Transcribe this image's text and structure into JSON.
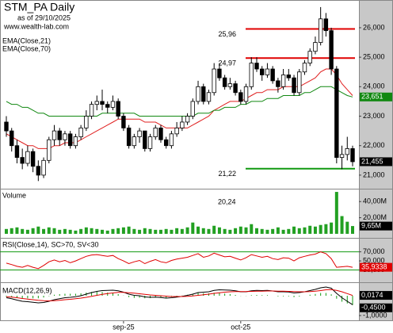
{
  "chart_data": {
    "type": "candlestick",
    "title": "STM_PA Daily",
    "subtitle": "as of 29/10/2025",
    "source": "www.wealth-lab.com",
    "annotation": "20,24",
    "categories": [
      null,
      null,
      null,
      null,
      null,
      null,
      null,
      null,
      null,
      null,
      null,
      null,
      null,
      null,
      null,
      null,
      null,
      null,
      null,
      null,
      null,
      null,
      "sep-25",
      null,
      null,
      null,
      null,
      null,
      null,
      null,
      null,
      null,
      null,
      null,
      null,
      null,
      null,
      null,
      null,
      null,
      null,
      null,
      null,
      null,
      "oct-25",
      null,
      null,
      null,
      null,
      null,
      null,
      null,
      null,
      null,
      null,
      null,
      null,
      null,
      null,
      null,
      null,
      null,
      null,
      null,
      null,
      null
    ],
    "ohlc": [
      [
        22.8,
        23.0,
        22.3,
        22.5
      ],
      [
        22.5,
        22.6,
        21.8,
        22.0
      ],
      [
        22.0,
        22.2,
        21.4,
        21.6
      ],
      [
        21.6,
        21.9,
        21.2,
        21.4
      ],
      [
        21.4,
        22.0,
        21.3,
        21.8
      ],
      [
        21.8,
        21.9,
        21.1,
        21.3
      ],
      [
        21.3,
        21.5,
        20.8,
        21.0
      ],
      [
        21.0,
        21.6,
        20.9,
        21.5
      ],
      [
        21.5,
        22.3,
        21.4,
        22.2
      ],
      [
        22.2,
        22.7,
        22.0,
        22.5
      ],
      [
        22.5,
        22.6,
        22.0,
        22.2
      ],
      [
        22.2,
        22.5,
        22.0,
        22.4
      ],
      [
        22.4,
        22.5,
        21.9,
        22.0
      ],
      [
        22.0,
        22.4,
        21.9,
        22.3
      ],
      [
        22.3,
        22.7,
        22.2,
        22.6
      ],
      [
        22.6,
        23.2,
        22.5,
        23.0
      ],
      [
        23.0,
        23.5,
        22.9,
        23.4
      ],
      [
        23.4,
        23.7,
        23.2,
        23.5
      ],
      [
        23.5,
        23.9,
        23.2,
        23.4
      ],
      [
        23.4,
        23.5,
        23.1,
        23.3
      ],
      [
        23.3,
        23.7,
        23.2,
        23.5
      ],
      [
        23.5,
        23.6,
        22.9,
        23.0
      ],
      [
        23.0,
        23.1,
        22.5,
        22.6
      ],
      [
        22.6,
        22.7,
        21.9,
        22.0
      ],
      [
        22.0,
        22.4,
        21.9,
        22.3
      ],
      [
        22.3,
        22.6,
        22.1,
        22.5
      ],
      [
        22.5,
        22.5,
        21.8,
        21.9
      ],
      [
        21.9,
        22.4,
        21.8,
        22.3
      ],
      [
        22.3,
        22.7,
        22.2,
        22.6
      ],
      [
        22.6,
        22.7,
        22.1,
        22.2
      ],
      [
        22.2,
        22.3,
        21.9,
        22.0
      ],
      [
        22.0,
        22.5,
        21.9,
        22.4
      ],
      [
        22.4,
        22.8,
        22.3,
        22.6
      ],
      [
        22.6,
        23.0,
        22.5,
        22.8
      ],
      [
        22.8,
        23.1,
        22.7,
        23.0
      ],
      [
        23.0,
        23.6,
        22.9,
        23.5
      ],
      [
        23.5,
        24.2,
        23.4,
        24.0
      ],
      [
        24.0,
        24.1,
        23.4,
        23.5
      ],
      [
        23.5,
        23.9,
        23.4,
        23.8
      ],
      [
        23.8,
        24.8,
        23.7,
        24.6
      ],
      [
        24.6,
        24.8,
        24.2,
        24.3
      ],
      [
        24.3,
        24.4,
        23.9,
        24.0
      ],
      [
        24.0,
        24.3,
        23.9,
        24.1
      ],
      [
        24.1,
        24.2,
        23.7,
        23.8
      ],
      [
        23.8,
        23.9,
        23.4,
        23.5
      ],
      [
        23.5,
        24.1,
        23.4,
        24.0
      ],
      [
        24.0,
        25.0,
        23.9,
        24.8
      ],
      [
        24.8,
        25.0,
        24.5,
        24.6
      ],
      [
        24.6,
        24.7,
        24.2,
        24.4
      ],
      [
        24.4,
        24.8,
        24.3,
        24.6
      ],
      [
        24.6,
        24.7,
        24.1,
        24.2
      ],
      [
        24.2,
        24.3,
        23.8,
        24.0
      ],
      [
        24.0,
        24.6,
        23.9,
        24.4
      ],
      [
        24.4,
        24.6,
        24.2,
        24.3
      ],
      [
        24.3,
        24.4,
        23.7,
        23.8
      ],
      [
        23.8,
        24.6,
        23.7,
        24.5
      ],
      [
        24.5,
        24.9,
        24.4,
        24.8
      ],
      [
        24.8,
        25.3,
        24.7,
        25.2
      ],
      [
        25.2,
        25.7,
        25.1,
        25.5
      ],
      [
        25.5,
        26.7,
        25.4,
        26.3
      ],
      [
        26.3,
        26.5,
        25.7,
        25.9
      ],
      [
        25.9,
        26.0,
        24.4,
        24.6
      ],
      [
        24.6,
        24.7,
        21.4,
        21.6
      ],
      [
        21.6,
        22.0,
        21.2,
        21.7
      ],
      [
        21.7,
        22.3,
        21.5,
        21.9
      ],
      [
        21.9,
        22.0,
        21.3,
        21.455
      ]
    ],
    "close_label": "21,455",
    "ylim": [
      20.54,
      26.94
    ],
    "yticks": [
      {
        "value": 21,
        "label": "21,000"
      },
      {
        "value": 22,
        "label": "22,000"
      },
      {
        "value": 23,
        "label": "23,000"
      },
      {
        "value": 24,
        "label": "24,000"
      },
      {
        "value": 25,
        "label": "25,000"
      },
      {
        "value": 26,
        "label": "26,000"
      }
    ],
    "levels": [
      {
        "value": 25.96,
        "label": "25,96",
        "color": "#e00000"
      },
      {
        "value": 24.97,
        "label": "24,97",
        "color": "#e00000"
      },
      {
        "value": 21.22,
        "label": "21,22",
        "color": "#119911"
      }
    ],
    "series": [
      {
        "name": "EMA(Close,21)",
        "color": "#e02020",
        "values": [
          22.4,
          22.3,
          22.2,
          22.1,
          22.0,
          22.0,
          21.9,
          21.9,
          21.9,
          22.0,
          22.0,
          22.1,
          22.1,
          22.1,
          22.2,
          22.3,
          22.4,
          22.5,
          22.6,
          22.7,
          22.8,
          22.9,
          22.9,
          22.9,
          22.9,
          22.9,
          22.8,
          22.8,
          22.8,
          22.7,
          22.6,
          22.6,
          22.6,
          22.6,
          22.6,
          22.7,
          22.8,
          22.9,
          23.0,
          23.2,
          23.3,
          23.4,
          23.5,
          23.5,
          23.5,
          23.6,
          23.7,
          23.8,
          23.8,
          23.9,
          23.9,
          23.9,
          24.0,
          24.0,
          24.0,
          24.0,
          24.1,
          24.2,
          24.3,
          24.5,
          24.6,
          24.6,
          24.4,
          24.1,
          23.9,
          23.7
        ]
      },
      {
        "name": "EMA(Close,70)",
        "color": "#118811",
        "last_label": "23,651",
        "values": [
          23.5,
          23.4,
          23.4,
          23.3,
          23.3,
          23.2,
          23.1,
          23.1,
          23.0,
          23.0,
          23.0,
          23.0,
          23.0,
          23.0,
          23.0,
          23.0,
          23.0,
          23.0,
          23.1,
          23.1,
          23.1,
          23.1,
          23.1,
          23.1,
          23.1,
          23.0,
          23.0,
          23.0,
          23.0,
          23.0,
          23.0,
          23.0,
          23.0,
          23.0,
          23.0,
          23.0,
          23.1,
          23.1,
          23.1,
          23.2,
          23.2,
          23.3,
          23.3,
          23.3,
          23.4,
          23.4,
          23.5,
          23.5,
          23.5,
          23.6,
          23.6,
          23.6,
          23.7,
          23.7,
          23.7,
          23.7,
          23.8,
          23.8,
          23.9,
          24.0,
          24.0,
          24.0,
          23.9,
          23.8,
          23.7,
          23.651
        ]
      }
    ],
    "volume": {
      "title": "Volume",
      "color": "#22a022",
      "ylim": [
        -5,
        55
      ],
      "yticks": [
        {
          "value": 40,
          "label": "40,00M"
        },
        {
          "value": 20,
          "label": "20,00M"
        }
      ],
      "last_label": "9,65M",
      "values": [
        6,
        7,
        8,
        6,
        5,
        7,
        9,
        6,
        8,
        7,
        5,
        6,
        5,
        4,
        6,
        8,
        7,
        6,
        5,
        4,
        6,
        7,
        8,
        9,
        6,
        5,
        7,
        6,
        5,
        5,
        6,
        5,
        7,
        6,
        8,
        14,
        9,
        7,
        6,
        10,
        8,
        6,
        5,
        7,
        9,
        8,
        12,
        7,
        6,
        5,
        6,
        8,
        5,
        6,
        9,
        7,
        8,
        10,
        9,
        11,
        12,
        14,
        52,
        22,
        15,
        9.65
      ]
    },
    "rsi": {
      "title": "RSI(Close,14), SC>70, SV<30",
      "color": "#e00000",
      "band_color": "#119911",
      "ylim": [
        3,
        99
      ],
      "yticks": [
        {
          "value": 70,
          "label": "70,000"
        },
        {
          "value": 50,
          "label": "50,000"
        },
        {
          "value": 30,
          "label": "30,000"
        }
      ],
      "last_label": "35,9338",
      "values": [
        45,
        42,
        38,
        36,
        40,
        36,
        33,
        40,
        48,
        52,
        48,
        51,
        46,
        50,
        55,
        60,
        63,
        64,
        62,
        60,
        62,
        55,
        50,
        44,
        48,
        51,
        44,
        49,
        53,
        48,
        46,
        51,
        54,
        56,
        58,
        62,
        66,
        58,
        61,
        67,
        63,
        59,
        60,
        56,
        52,
        57,
        64,
        61,
        58,
        60,
        55,
        53,
        57,
        56,
        50,
        57,
        60,
        63,
        65,
        70,
        66,
        55,
        36,
        37,
        38,
        35.9338
      ]
    },
    "macd": {
      "title": "MACD(12,26,9)",
      "ylim": [
        -1.28,
        0.64
      ],
      "yticks": [
        {
          "value": -1,
          "label": "-1,0000"
        }
      ],
      "line": {
        "color": "#000000",
        "last_label": "-0,4500",
        "values": [
          -0.1,
          -0.15,
          -0.22,
          -0.28,
          -0.3,
          -0.33,
          -0.36,
          -0.34,
          -0.28,
          -0.2,
          -0.15,
          -0.1,
          -0.08,
          -0.05,
          0.0,
          0.08,
          0.16,
          0.22,
          0.26,
          0.27,
          0.28,
          0.25,
          0.18,
          0.08,
          0.02,
          0.0,
          -0.06,
          -0.08,
          -0.07,
          -0.09,
          -0.12,
          -0.1,
          -0.07,
          -0.03,
          0.02,
          0.08,
          0.16,
          0.18,
          0.2,
          0.27,
          0.3,
          0.29,
          0.28,
          0.25,
          0.2,
          0.2,
          0.25,
          0.27,
          0.26,
          0.27,
          0.24,
          0.2,
          0.2,
          0.19,
          0.14,
          0.16,
          0.2,
          0.26,
          0.32,
          0.4,
          0.44,
          0.38,
          0.12,
          -0.1,
          -0.28,
          -0.45
        ]
      },
      "signal": {
        "color": "#e00000",
        "last_label": "0,0174",
        "values": [
          -0.05,
          -0.07,
          -0.1,
          -0.14,
          -0.17,
          -0.2,
          -0.23,
          -0.25,
          -0.26,
          -0.25,
          -0.23,
          -0.2,
          -0.18,
          -0.15,
          -0.12,
          -0.08,
          -0.03,
          0.02,
          0.07,
          0.11,
          0.14,
          0.17,
          0.17,
          0.15,
          0.13,
          0.1,
          0.07,
          0.04,
          0.02,
          0.0,
          -0.02,
          -0.04,
          -0.04,
          -0.04,
          -0.03,
          -0.01,
          0.02,
          0.05,
          0.08,
          0.12,
          0.15,
          0.18,
          0.2,
          0.21,
          0.21,
          0.21,
          0.22,
          0.23,
          0.23,
          0.24,
          0.24,
          0.23,
          0.23,
          0.22,
          0.21,
          0.2,
          0.2,
          0.21,
          0.23,
          0.26,
          0.3,
          0.31,
          0.27,
          0.2,
          0.11,
          0.0174
        ]
      },
      "histogram": {
        "color": "#119911",
        "values": [
          -0.05,
          -0.08,
          -0.12,
          -0.14,
          -0.13,
          -0.13,
          -0.13,
          -0.09,
          -0.02,
          0.05,
          0.08,
          0.1,
          0.1,
          0.1,
          0.12,
          0.16,
          0.19,
          0.2,
          0.19,
          0.16,
          0.14,
          0.08,
          0.01,
          -0.07,
          -0.11,
          -0.1,
          -0.13,
          -0.12,
          -0.09,
          -0.09,
          -0.1,
          -0.06,
          -0.03,
          0.01,
          0.05,
          0.09,
          0.14,
          0.13,
          0.12,
          0.15,
          0.15,
          0.11,
          0.08,
          0.04,
          -0.01,
          -0.01,
          0.03,
          0.04,
          0.03,
          0.03,
          0.0,
          -0.03,
          -0.03,
          -0.03,
          -0.07,
          -0.04,
          0.0,
          0.05,
          0.09,
          0.14,
          0.14,
          0.07,
          -0.15,
          -0.3,
          -0.39,
          -0.47
        ]
      }
    }
  }
}
